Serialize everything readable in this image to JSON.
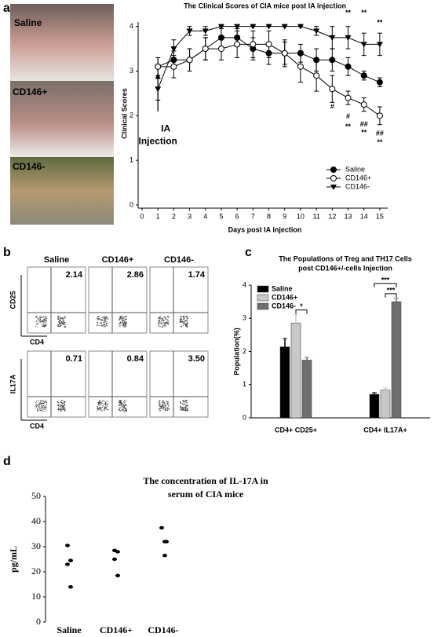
{
  "panels": [
    "a",
    "b",
    "c",
    "d"
  ],
  "photos": [
    "Saline",
    "CD146+",
    "CD146-"
  ],
  "flow": {
    "columns": [
      "Saline",
      "CD146+",
      "CD146-"
    ],
    "rows": [
      {
        "y_label": "CD25",
        "x_label": "CD4",
        "values": [
          "2.14",
          "2.86",
          "1.74"
        ]
      },
      {
        "y_label": "IL17A",
        "x_label": "CD4",
        "values": [
          "0.71",
          "0.84",
          "3.50"
        ]
      }
    ]
  },
  "chart_data": [
    {
      "type": "line",
      "title": "The Clinical Scores of CIA mice post IA injection",
      "x_label": "Days post IA injection",
      "y_label": "Clinical Scores",
      "x": [
        1,
        2,
        3,
        4,
        5,
        6,
        7,
        8,
        9,
        10,
        11,
        12,
        13,
        14,
        15
      ],
      "series": [
        {
          "name": "Saline",
          "color": "#000000",
          "marker": "circle-filled",
          "values": [
            3.1,
            3.25,
            3.25,
            3.5,
            3.75,
            3.75,
            3.5,
            3.4,
            3.4,
            3.4,
            3.25,
            3.25,
            3.1,
            2.9,
            2.75
          ],
          "errors": [
            0.2,
            0.2,
            0.25,
            0.25,
            0.2,
            0.2,
            0.25,
            0.25,
            0.25,
            0.2,
            0.25,
            0.25,
            0.2,
            0.1,
            0.1
          ]
        },
        {
          "name": "CD146+",
          "color": "#000000",
          "marker": "circle-open",
          "values": [
            3.1,
            3.1,
            3.25,
            3.5,
            3.5,
            3.6,
            3.6,
            3.6,
            3.4,
            3.1,
            2.9,
            2.6,
            2.4,
            2.25,
            2.0
          ],
          "errors": [
            0.2,
            0.25,
            0.25,
            0.25,
            0.25,
            0.3,
            0.3,
            0.3,
            0.3,
            0.35,
            0.35,
            0.3,
            0.15,
            0.15,
            0.2
          ]
        },
        {
          "name": "CD146-",
          "color": "#000000",
          "marker": "triangle-down",
          "values": [
            2.6,
            3.5,
            3.9,
            3.9,
            4.0,
            4.0,
            4.0,
            4.0,
            4.0,
            4.0,
            3.9,
            3.75,
            3.75,
            3.6,
            3.6
          ],
          "errors": [
            0.25,
            0.2,
            0.1,
            0.1,
            0.0,
            0.0,
            0.0,
            0.0,
            0.0,
            0.0,
            0.1,
            0.25,
            0.25,
            0.25,
            0.25
          ]
        }
      ],
      "xlim": [
        0,
        15.5
      ],
      "xticks": [
        0,
        1,
        2,
        3,
        4,
        5,
        6,
        7,
        8,
        9,
        10,
        11,
        12,
        13,
        14,
        15
      ],
      "ylim": [
        0,
        4.1
      ],
      "yticks": [
        0,
        1,
        2,
        3,
        4
      ],
      "legend": "lower right",
      "annotations": [
        {
          "text": "**",
          "x": 13,
          "y": 4.3
        },
        {
          "text": "**",
          "x": 14,
          "y": 4.3
        },
        {
          "text": "**",
          "x": 15,
          "y": 4.08
        },
        {
          "text": "#",
          "x": 12,
          "y": 2.2
        },
        {
          "text": "#",
          "x": 13,
          "y": 1.98
        },
        {
          "text": "**",
          "x": 13,
          "y": 1.75
        },
        {
          "text": "##",
          "x": 14,
          "y": 1.8
        },
        {
          "text": "**",
          "x": 14,
          "y": 1.62
        },
        {
          "text": "##",
          "x": 15,
          "y": 1.6
        },
        {
          "text": "**",
          "x": 15,
          "y": 1.4
        }
      ],
      "arrow_annotation": {
        "text": [
          "IA",
          "Injection"
        ],
        "x": 1
      }
    },
    {
      "type": "bar",
      "title": [
        "The Populations of Treg and TH17 Cells",
        "post CD146+/-cells Injection"
      ],
      "y_label": "Population(%)",
      "categories": [
        "CD4+ CD25+",
        "CD4+ IL17A+"
      ],
      "series": [
        {
          "name": "Saline",
          "color": "#000000",
          "values": [
            2.14,
            0.71
          ],
          "errors": [
            0.25,
            0.05
          ]
        },
        {
          "name": "CD146+",
          "color": "#c8c8c8",
          "values": [
            2.86,
            0.84
          ],
          "errors": [
            0.25,
            0.06
          ]
        },
        {
          "name": "CD146-",
          "color": "#6e6e6e",
          "values": [
            1.74,
            3.5
          ],
          "errors": [
            0.08,
            0.1
          ]
        }
      ],
      "ylim": [
        0,
        4
      ],
      "yticks": [
        0,
        1,
        2,
        3,
        4
      ],
      "legend": "upper left",
      "significance": [
        {
          "text": "*",
          "group": 0,
          "from": 1,
          "to": 2
        },
        {
          "text": "***",
          "group": 1,
          "from": 0,
          "to": 2
        },
        {
          "text": "***",
          "group": 1,
          "from": 1,
          "to": 2
        }
      ]
    },
    {
      "type": "strip",
      "title": [
        "The concentration of IL-17A in",
        "serum of CIA mice"
      ],
      "y_label": "pg/mL",
      "categories": [
        "Saline",
        "CD146+",
        "CD146-"
      ],
      "values": [
        [
          30.5,
          24.5,
          23,
          14
        ],
        [
          28.5,
          28,
          25,
          18.5
        ],
        [
          37.5,
          32,
          32,
          26.5
        ]
      ],
      "ylim": [
        0,
        50
      ],
      "yticks": [
        0,
        10,
        20,
        30,
        40,
        50
      ]
    }
  ]
}
